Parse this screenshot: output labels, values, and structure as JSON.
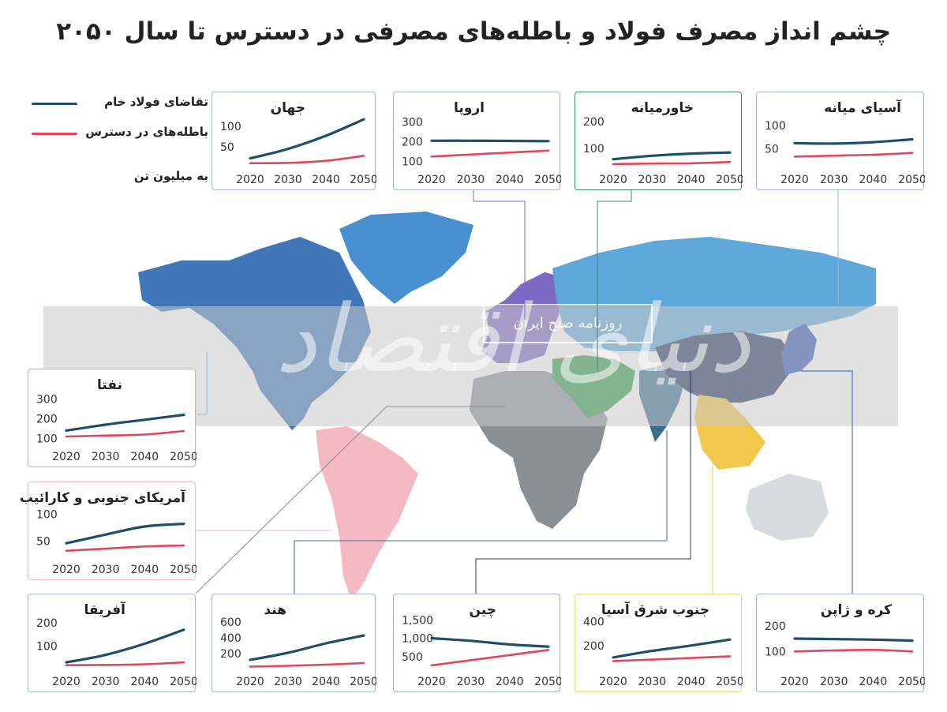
{
  "title": "چشم انداز مصرف فولاد و باطله‌های مصرفی در دسترس تا سال ۲۰۵۰",
  "legend": {
    "items": [
      {
        "label": "تقاضای فولاد خام",
        "color": "#1f4e6b"
      },
      {
        "label": "باطله‌های در دسترس",
        "color": "#e3455a"
      }
    ],
    "unit": "به میلیون تن"
  },
  "watermark": {
    "text": "روزنامه صبح ایران",
    "logo_text": "دنیای اقتصاد"
  },
  "colors": {
    "demand": "#1f4e6b",
    "scrap": "#e3455a",
    "panel_border_default": "#9fb7cf",
    "panel_border_middle_east": "#3f8a72",
    "panel_border_south_america": "#f1b9c0",
    "panel_border_sea": "#f2d27a",
    "north_america": "#3f77b8",
    "greenland": "#4a8fd0",
    "south_america": "#f4b9c2",
    "europe": "#7b69c4",
    "middle_east": "#2f9b4a",
    "africa": "#8a8f96",
    "russia": "#5fa8dc",
    "china": "#23345f",
    "india": "#3a6e8c",
    "southeast_asia": "#f2c94c",
    "japan_korea": "#2f56b8",
    "australia": "#d7dbe0"
  },
  "chart_data": [
    {
      "region": "جهان",
      "type": "line",
      "x": [
        2020,
        2030,
        2040,
        2050
      ],
      "yticks": [
        50,
        100
      ],
      "ylim": [
        0,
        125
      ],
      "series": [
        {
          "name": "تقاضای فولاد خام",
          "values": [
            22,
            45,
            77,
            117
          ]
        },
        {
          "name": "باطله‌های در دسترس",
          "values": [
            10,
            11,
            16,
            28
          ]
        }
      ]
    },
    {
      "region": "اروپا",
      "type": "line",
      "x": [
        2020,
        2030,
        2040,
        2050
      ],
      "yticks": [
        100,
        200,
        300
      ],
      "ylim": [
        70,
        330
      ],
      "series": [
        {
          "name": "تقاضای فولاد خام",
          "values": [
            205,
            205,
            204,
            203
          ]
        },
        {
          "name": "باطله‌های در دسترس",
          "values": [
            125,
            135,
            145,
            155
          ]
        }
      ]
    },
    {
      "region": "خاورمیانه",
      "type": "line",
      "x": [
        2020,
        2030,
        2040,
        2050
      ],
      "yticks": [
        100,
        200
      ],
      "ylim": [
        30,
        220
      ],
      "series": [
        {
          "name": "تقاضای فولاد خام",
          "values": [
            60,
            73,
            81,
            85
          ]
        },
        {
          "name": "باطله‌های در دسترس",
          "values": [
            42,
            44,
            45,
            50
          ]
        }
      ]
    },
    {
      "region": "آسیای میانه",
      "type": "line",
      "x": [
        2020,
        2030,
        2040,
        2050
      ],
      "yticks": [
        50,
        100
      ],
      "ylim": [
        10,
        120
      ],
      "series": [
        {
          "name": "تقاضای فولاد خام",
          "values": [
            62,
            61,
            64,
            70
          ]
        },
        {
          "name": "باطله‌های در دسترس",
          "values": [
            33,
            35,
            37,
            41
          ]
        }
      ]
    },
    {
      "region": "نفتا",
      "type": "line",
      "x": [
        2020,
        2030,
        2040,
        2050
      ],
      "yticks": [
        100,
        200,
        300
      ],
      "ylim": [
        70,
        330
      ],
      "series": [
        {
          "name": "تقاضای فولاد خام",
          "values": [
            140,
            170,
            195,
            220
          ]
        },
        {
          "name": "باطله‌های در دسترس",
          "values": [
            110,
            115,
            120,
            138
          ]
        }
      ]
    },
    {
      "region": "آمریکای جنوبی و کارائیب",
      "type": "line",
      "x": [
        2020,
        2030,
        2040,
        2050
      ],
      "yticks": [
        50,
        100
      ],
      "ylim": [
        20,
        115
      ],
      "series": [
        {
          "name": "تقاضای فولاد خام",
          "values": [
            46,
            62,
            77,
            82
          ]
        },
        {
          "name": "باطله‌های در دسترس",
          "values": [
            32,
            36,
            40,
            42
          ]
        }
      ]
    },
    {
      "region": "آفریقا",
      "type": "line",
      "x": [
        2020,
        2030,
        2040,
        2050
      ],
      "yticks": [
        100,
        200
      ],
      "ylim": [
        0,
        220
      ],
      "series": [
        {
          "name": "تقاضای فولاد خام",
          "values": [
            30,
            62,
            110,
            170
          ]
        },
        {
          "name": "باطله‌های در دسترس",
          "values": [
            18,
            19,
            22,
            30
          ]
        }
      ]
    },
    {
      "region": "هند",
      "type": "line",
      "x": [
        2020,
        2030,
        2040,
        2050
      ],
      "yticks": [
        200,
        400,
        600
      ],
      "ylim": [
        0,
        650
      ],
      "series": [
        {
          "name": "تقاضای فولاد خام",
          "values": [
            120,
            210,
            330,
            430
          ]
        },
        {
          "name": "باطله‌های در دسترس",
          "values": [
            35,
            45,
            60,
            80
          ]
        }
      ]
    },
    {
      "region": "چین",
      "type": "line",
      "x": [
        2020,
        2030,
        2040,
        2050
      ],
      "yticks": [
        500,
        1000,
        1500
      ],
      "ylim": [
        150,
        1550
      ],
      "series": [
        {
          "name": "تقاضای فولاد خام",
          "values": [
            1000,
            930,
            830,
            770
          ]
        },
        {
          "name": "باطله‌های در دسترس",
          "values": [
            260,
            400,
            540,
            680
          ]
        }
      ]
    },
    {
      "region": "جنوب شرق آسیا",
      "type": "line",
      "x": [
        2020,
        2030,
        2040,
        2050
      ],
      "yticks": [
        200,
        400
      ],
      "ylim": [
        0,
        430
      ],
      "series": [
        {
          "name": "تقاضای فولاد خام",
          "values": [
            100,
            155,
            200,
            250
          ]
        },
        {
          "name": "باطله‌های در دسترس",
          "values": [
            70,
            82,
            95,
            110
          ]
        }
      ]
    },
    {
      "region": "کره و ژاپن",
      "type": "line",
      "x": [
        2020,
        2030,
        2040,
        2050
      ],
      "yticks": [
        100,
        200
      ],
      "ylim": [
        30,
        230
      ],
      "series": [
        {
          "name": "تقاضای فولاد خام",
          "values": [
            150,
            148,
            146,
            142
          ]
        },
        {
          "name": "باطله‌های در دسترس",
          "values": [
            100,
            104,
            106,
            100
          ]
        }
      ]
    }
  ]
}
